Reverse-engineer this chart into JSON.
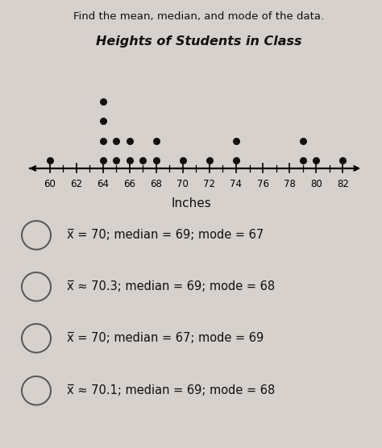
{
  "title": "Heights of Students in Class",
  "instruction": "Find the mean, median, and mode of the data.",
  "xlabel": "Inches",
  "dot_data": {
    "60": 1,
    "64": 4,
    "65": 2,
    "66": 2,
    "67": 1,
    "68": 2,
    "70": 1,
    "72": 1,
    "74": 2,
    "79": 2,
    "80": 1,
    "82": 1
  },
  "axis_min": 58.0,
  "axis_max": 83.8,
  "tick_positions": [
    60,
    62,
    64,
    66,
    68,
    70,
    72,
    74,
    76,
    78,
    80,
    82
  ],
  "all_ticks": [
    60,
    61,
    62,
    63,
    64,
    65,
    66,
    67,
    68,
    69,
    70,
    71,
    72,
    73,
    74,
    75,
    76,
    77,
    78,
    79,
    80,
    81,
    82
  ],
  "choices_prefix": [
    "χ̅ = 70; median = 69; mode = 67",
    "χ̅ ≈ 70.3; median = 69; mode = 68",
    "χ̅ = 70; median = 67; mode = 69",
    "χ̅ ≈ 70.1; median = 69; mode = 68"
  ],
  "xbar_texts": [
    "x",
    "x",
    "x",
    "x"
  ],
  "choice_suffixes": [
    " = 70; median = 69; mode = 67",
    " ≈ 70.3; median = 69; mode = 68",
    " = 70; median = 67; mode = 69",
    " ≈ 70.1; median = 69; mode = 68"
  ],
  "bg_color": "#d6d1cc",
  "inner_bg": "#e8e4e0",
  "dot_color": "#111111",
  "dot_size": 6.5,
  "title_fontsize": 11.5,
  "instruction_fontsize": 9.5,
  "choice_fontsize": 10.5,
  "axis_label_fontsize": 8.5
}
